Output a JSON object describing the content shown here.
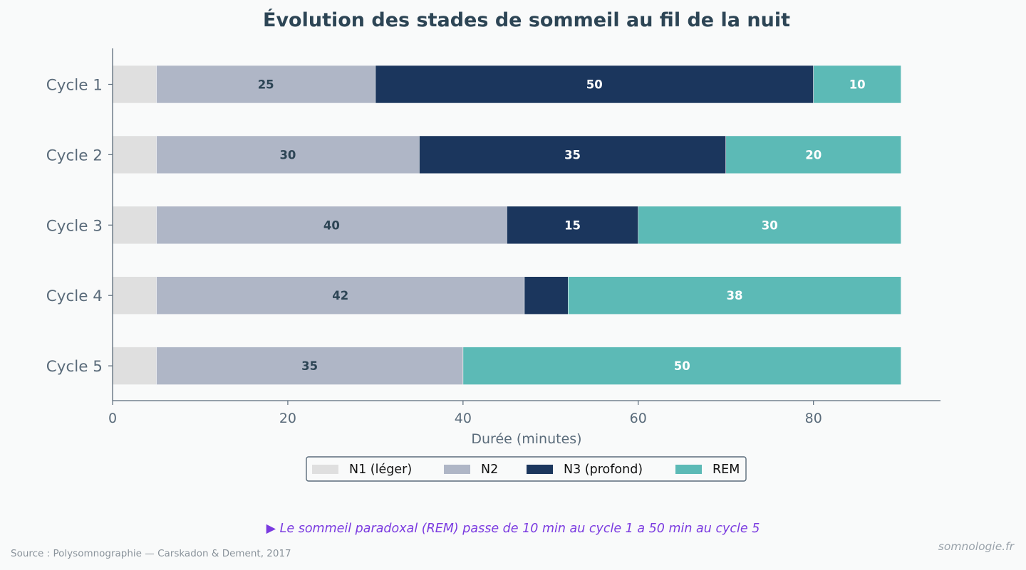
{
  "chart_data": {
    "type": "bar",
    "orientation": "horizontal",
    "stacked": true,
    "title": "Évolution des stades de sommeil au fil de la nuit",
    "xlabel": "Durée (minutes)",
    "ylabel": "",
    "xlim": [
      0,
      94.5
    ],
    "xticks": [
      0,
      20,
      40,
      60,
      80
    ],
    "categories": [
      "Cycle 1",
      "Cycle 2",
      "Cycle 3",
      "Cycle 4",
      "Cycle 5"
    ],
    "series": [
      {
        "name": "N1 (léger)",
        "values": [
          5,
          5,
          5,
          5,
          5
        ],
        "color": "#dfdfdf",
        "show_labels": false
      },
      {
        "name": "N2",
        "values": [
          25,
          30,
          40,
          42,
          35
        ],
        "color": "#afb6c6",
        "label_color": "#2d4555"
      },
      {
        "name": "N3 (profond)",
        "values": [
          50,
          35,
          15,
          5,
          0
        ],
        "color": "#1b365d",
        "label_color": "#ffffff",
        "label_min": 10
      },
      {
        "name": "REM",
        "values": [
          10,
          20,
          30,
          38,
          50
        ],
        "color": "#5cbab6",
        "label_color": "#ffffff"
      }
    ],
    "legend_position": "bottom-center",
    "grid": false
  },
  "annotation": "▶ Le sommeil paradoxal (REM) passe de 10 min au cycle 1 a 50 min au cycle 5",
  "source": "Source : Polysomnographie — Carskadon & Dement, 2017",
  "site": "somnologie.fr",
  "colors": {
    "title": "#2d4555",
    "axis": "#5a6b7a",
    "background": "#f9fafa",
    "annotation": "#7a3ae0"
  }
}
